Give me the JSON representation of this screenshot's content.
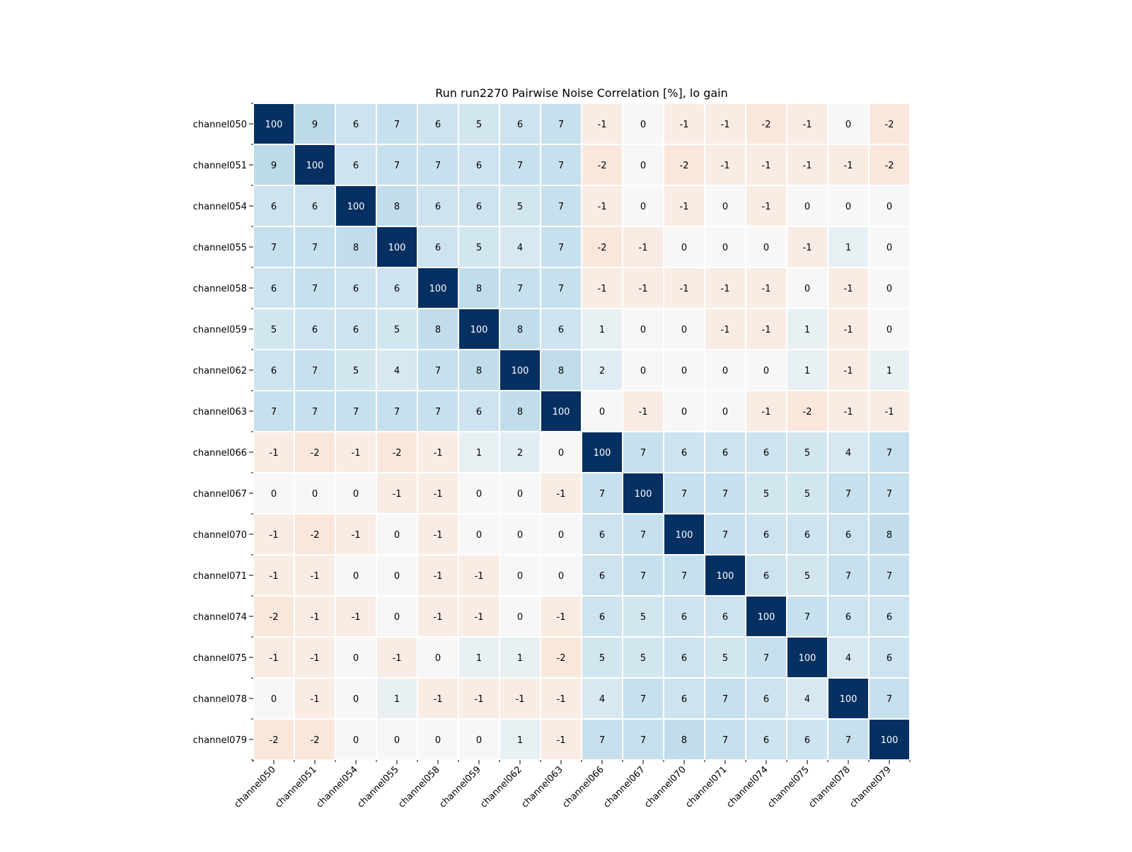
{
  "chart_data": {
    "type": "heatmap",
    "title": "Run run2270 Pairwise Noise Correlation [%], lo gain",
    "xlabel": "",
    "ylabel": "",
    "rows": [
      "channel050",
      "channel051",
      "channel054",
      "channel055",
      "channel058",
      "channel059",
      "channel062",
      "channel063",
      "channel066",
      "channel067",
      "channel070",
      "channel071",
      "channel074",
      "channel075",
      "channel078",
      "channel079"
    ],
    "columns": [
      "channel050",
      "channel051",
      "channel054",
      "channel055",
      "channel058",
      "channel059",
      "channel062",
      "channel063",
      "channel066",
      "channel067",
      "channel070",
      "channel071",
      "channel074",
      "channel075",
      "channel078",
      "channel079"
    ],
    "values": [
      [
        100,
        9,
        6,
        7,
        6,
        5,
        6,
        7,
        -1,
        0,
        -1,
        -1,
        -2,
        -1,
        0,
        -2
      ],
      [
        9,
        100,
        6,
        7,
        7,
        6,
        7,
        7,
        -2,
        0,
        -2,
        -1,
        -1,
        -1,
        -1,
        -2
      ],
      [
        6,
        6,
        100,
        8,
        6,
        6,
        5,
        7,
        -1,
        0,
        -1,
        0,
        -1,
        0,
        0,
        0
      ],
      [
        7,
        7,
        8,
        100,
        6,
        5,
        4,
        7,
        -2,
        -1,
        0,
        0,
        0,
        -1,
        1,
        0
      ],
      [
        6,
        7,
        6,
        6,
        100,
        8,
        7,
        7,
        -1,
        -1,
        -1,
        -1,
        -1,
        0,
        -1,
        0
      ],
      [
        5,
        6,
        6,
        5,
        8,
        100,
        8,
        6,
        1,
        0,
        0,
        -1,
        -1,
        1,
        -1,
        0
      ],
      [
        6,
        7,
        5,
        4,
        7,
        8,
        100,
        8,
        2,
        0,
        0,
        0,
        0,
        1,
        -1,
        1
      ],
      [
        7,
        7,
        7,
        7,
        7,
        6,
        8,
        100,
        0,
        -1,
        0,
        0,
        -1,
        -2,
        -1,
        -1
      ],
      [
        -1,
        -2,
        -1,
        -2,
        -1,
        1,
        2,
        0,
        100,
        7,
        6,
        6,
        6,
        5,
        4,
        7
      ],
      [
        0,
        0,
        0,
        -1,
        -1,
        0,
        0,
        -1,
        7,
        100,
        7,
        7,
        5,
        5,
        7,
        7
      ],
      [
        -1,
        -2,
        -1,
        0,
        -1,
        0,
        0,
        0,
        6,
        7,
        100,
        7,
        6,
        6,
        6,
        8
      ],
      [
        -1,
        -1,
        0,
        0,
        -1,
        -1,
        0,
        0,
        6,
        7,
        7,
        100,
        6,
        5,
        7,
        7
      ],
      [
        -2,
        -1,
        -1,
        0,
        -1,
        -1,
        0,
        -1,
        6,
        5,
        6,
        6,
        100,
        7,
        6,
        6
      ],
      [
        -1,
        -1,
        0,
        -1,
        0,
        1,
        1,
        -2,
        5,
        5,
        6,
        5,
        7,
        100,
        4,
        6
      ],
      [
        0,
        -1,
        0,
        1,
        -1,
        -1,
        -1,
        -1,
        4,
        7,
        6,
        7,
        6,
        4,
        100,
        7
      ],
      [
        -2,
        -2,
        0,
        0,
        0,
        0,
        1,
        -1,
        7,
        7,
        8,
        7,
        6,
        6,
        7,
        100
      ]
    ],
    "colormap": "RdBu (diverging, centered at 0)",
    "value_range": [
      -100,
      100
    ],
    "grid": false,
    "legend": "none",
    "colors": {
      "diagonal": "#053061",
      "positive_strong": "#b4d5e8",
      "neutral": "#f7f7f7",
      "negative_weak": "#f7e6dc",
      "cell_border": "#ffffff",
      "text_dark": "#000000",
      "text_light": "#ffffff"
    }
  }
}
